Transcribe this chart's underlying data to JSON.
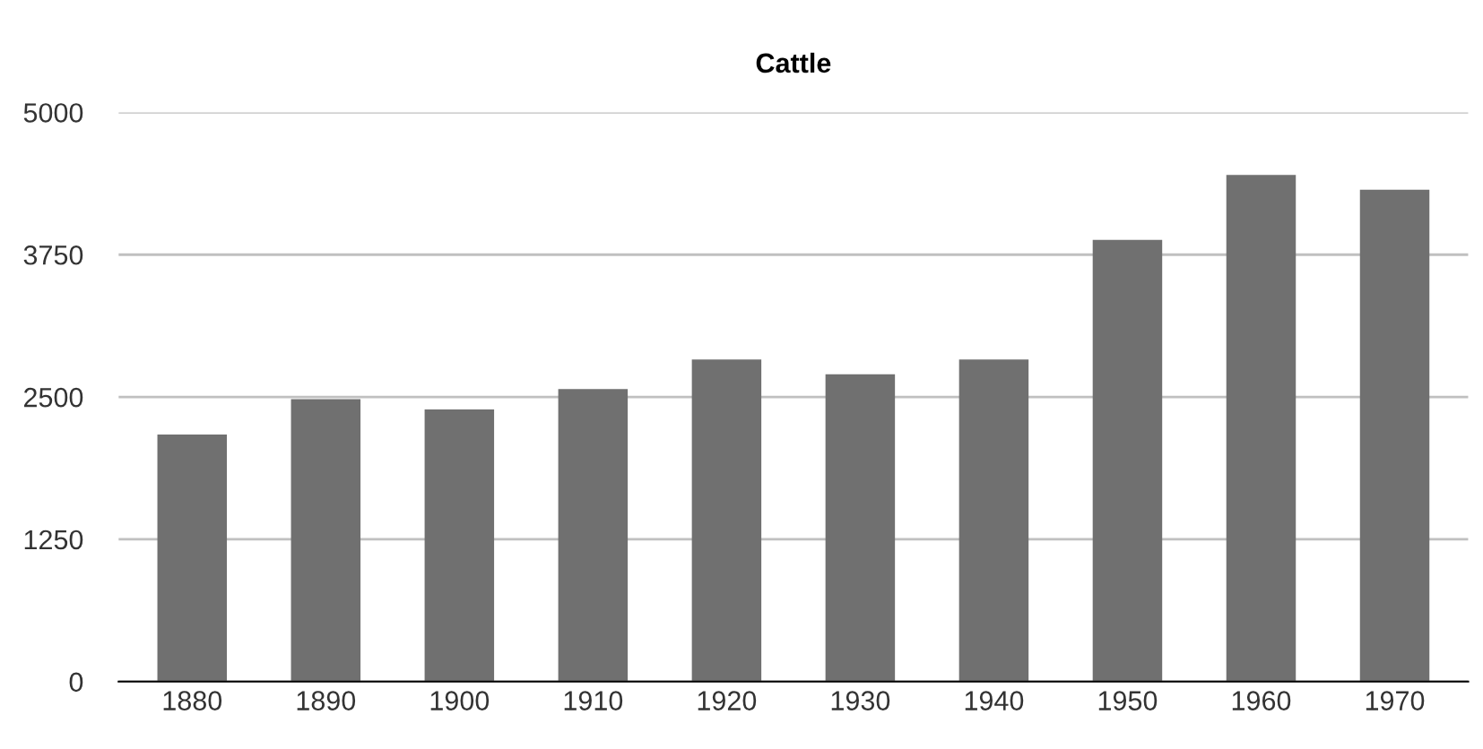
{
  "chart_data": {
    "type": "bar",
    "title": "Cattle",
    "categories": [
      "1880",
      "1890",
      "1900",
      "1910",
      "1920",
      "1930",
      "1940",
      "1950",
      "1960",
      "1970"
    ],
    "values": [
      2170,
      2480,
      2390,
      2570,
      2830,
      2700,
      2830,
      3880,
      4450,
      4320
    ],
    "color": "#707070",
    "ylim": [
      0,
      5000
    ],
    "yticks": [
      0,
      1250,
      2500,
      3750,
      5000
    ],
    "grid": "y"
  }
}
